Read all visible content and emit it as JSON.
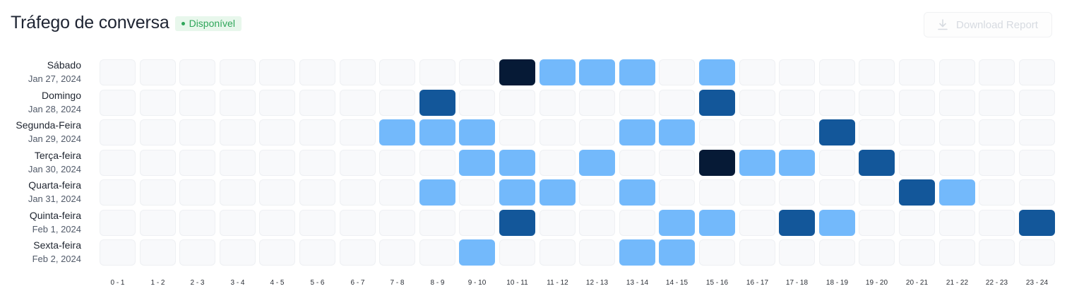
{
  "header": {
    "title": "Tráfego de conversa",
    "status_badge": "Disponível",
    "download_label": "Download Report"
  },
  "colors": {
    "0": "#f8f9fb",
    "1": "#73b9fb",
    "2": "#13579a",
    "3": "#061a36",
    "badge_bg": "#e8f7ec",
    "badge_text": "#2fa65a"
  },
  "chart_data": {
    "type": "heatmap",
    "title": "Tráfego de conversa",
    "x_categories": [
      "0 - 1",
      "1 - 2",
      "2 - 3",
      "3 - 4",
      "4 - 5",
      "5 - 6",
      "6 - 7",
      "7 - 8",
      "8 - 9",
      "9 - 10",
      "10 - 11",
      "11 - 12",
      "12 - 13",
      "13 - 14",
      "14 - 15",
      "15 - 16",
      "16 - 17",
      "17 - 18",
      "18 - 19",
      "19 - 20",
      "20 - 21",
      "21 - 22",
      "22 - 23",
      "23 - 24"
    ],
    "rows": [
      {
        "day": "Sábado",
        "date": "Jan 27, 2024",
        "values": [
          0,
          0,
          0,
          0,
          0,
          0,
          0,
          0,
          0,
          0,
          3,
          1,
          1,
          1,
          0,
          1,
          0,
          0,
          0,
          0,
          0,
          0,
          0,
          0
        ]
      },
      {
        "day": "Domingo",
        "date": "Jan 28, 2024",
        "values": [
          0,
          0,
          0,
          0,
          0,
          0,
          0,
          0,
          2,
          0,
          0,
          0,
          0,
          0,
          0,
          2,
          0,
          0,
          0,
          0,
          0,
          0,
          0,
          0
        ]
      },
      {
        "day": "Segunda-Feira",
        "date": "Jan 29, 2024",
        "values": [
          0,
          0,
          0,
          0,
          0,
          0,
          0,
          1,
          1,
          1,
          0,
          0,
          0,
          1,
          1,
          0,
          0,
          0,
          2,
          0,
          0,
          0,
          0,
          0
        ]
      },
      {
        "day": "Terça-feira",
        "date": "Jan 30, 2024",
        "values": [
          0,
          0,
          0,
          0,
          0,
          0,
          0,
          0,
          0,
          1,
          1,
          0,
          1,
          0,
          0,
          3,
          1,
          1,
          0,
          2,
          0,
          0,
          0,
          0
        ]
      },
      {
        "day": "Quarta-feira",
        "date": "Jan 31, 2024",
        "values": [
          0,
          0,
          0,
          0,
          0,
          0,
          0,
          0,
          1,
          0,
          1,
          1,
          0,
          1,
          0,
          0,
          0,
          0,
          0,
          0,
          2,
          1,
          0,
          0
        ]
      },
      {
        "day": "Quinta-feira",
        "date": "Feb 1, 2024",
        "values": [
          0,
          0,
          0,
          0,
          0,
          0,
          0,
          0,
          0,
          0,
          2,
          0,
          0,
          0,
          1,
          1,
          0,
          2,
          1,
          0,
          0,
          0,
          0,
          2
        ]
      },
      {
        "day": "Sexta-feira",
        "date": "Feb 2, 2024",
        "values": [
          0,
          0,
          0,
          0,
          0,
          0,
          0,
          0,
          0,
          1,
          0,
          0,
          0,
          1,
          1,
          0,
          0,
          0,
          0,
          0,
          0,
          0,
          0,
          0
        ]
      }
    ]
  }
}
